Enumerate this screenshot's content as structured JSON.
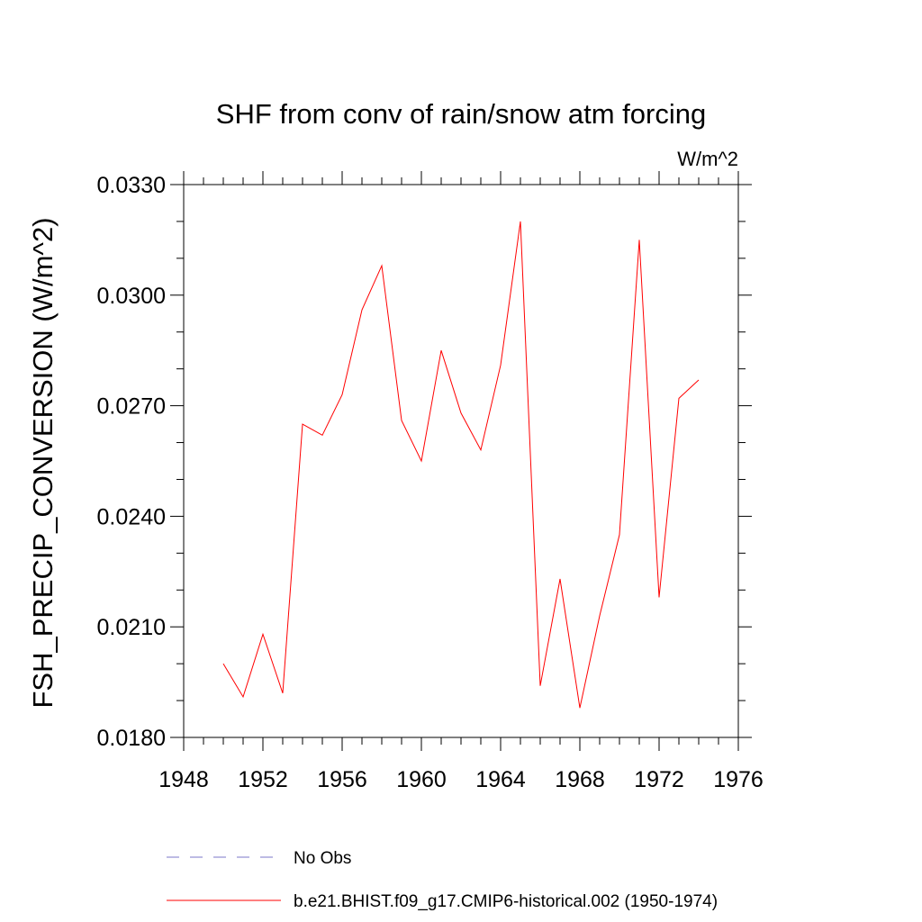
{
  "chart_data": {
    "type": "line",
    "title": "SHF from conv of rain/snow atm forcing",
    "units_label": "W/m^2",
    "xlabel": "",
    "ylabel": "FSH_PRECIP_CONVERSION  (W/m^2)",
    "xlim": [
      1948,
      1976
    ],
    "ylim": [
      0.018,
      0.033
    ],
    "x_ticks": [
      {
        "value": 1948,
        "label": "1948"
      },
      {
        "value": 1952,
        "label": "1952"
      },
      {
        "value": 1956,
        "label": "1956"
      },
      {
        "value": 1960,
        "label": "1960"
      },
      {
        "value": 1964,
        "label": "1964"
      },
      {
        "value": 1968,
        "label": "1968"
      },
      {
        "value": 1972,
        "label": "1972"
      },
      {
        "value": 1976,
        "label": "1976"
      }
    ],
    "y_ticks": [
      {
        "value": 0.018,
        "label": "0.0180"
      },
      {
        "value": 0.021,
        "label": "0.0210"
      },
      {
        "value": 0.024,
        "label": "0.0240"
      },
      {
        "value": 0.027,
        "label": "0.0270"
      },
      {
        "value": 0.03,
        "label": "0.0300"
      },
      {
        "value": 0.033,
        "label": "0.0330"
      }
    ],
    "grid": false,
    "legend_position": "bottom",
    "series": [
      {
        "name": "No Obs",
        "color": "#7b77c9",
        "dash": "dashed",
        "x": [],
        "y": []
      },
      {
        "name": "b.e21.BHIST.f09_g17.CMIP6-historical.002 (1950-1974)",
        "color": "#ff0000",
        "dash": "solid",
        "x": [
          1950,
          1951,
          1952,
          1953,
          1954,
          1955,
          1956,
          1957,
          1958,
          1959,
          1960,
          1961,
          1962,
          1963,
          1964,
          1965,
          1966,
          1967,
          1968,
          1969,
          1970,
          1971,
          1972,
          1973,
          1974
        ],
        "y": [
          0.02,
          0.0191,
          0.0208,
          0.0192,
          0.0265,
          0.0262,
          0.0273,
          0.0296,
          0.0308,
          0.0266,
          0.0255,
          0.0285,
          0.0268,
          0.0258,
          0.0281,
          0.032,
          0.0194,
          0.0223,
          0.0188,
          0.0213,
          0.0235,
          0.0315,
          0.0218,
          0.0272,
          0.0277
        ]
      }
    ]
  }
}
